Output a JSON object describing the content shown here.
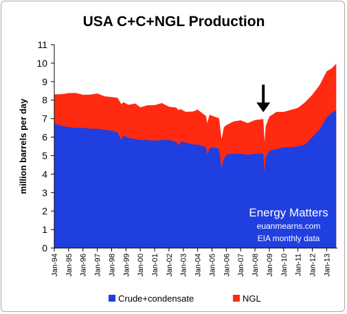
{
  "chart_data": {
    "type": "area",
    "title": "USA C+C+NGL Production",
    "ylabel": "million barrels per day",
    "ylim": [
      0,
      11
    ],
    "yticks": [
      0,
      1,
      2,
      3,
      4,
      5,
      6,
      7,
      8,
      9,
      10,
      11
    ],
    "xticks": [
      "Jan-94",
      "Jan-95",
      "Jan-96",
      "Jan-97",
      "Jan-98",
      "Jan-99",
      "Jan-00",
      "Jan-01",
      "Jan-02",
      "Jan-03",
      "Jan-04",
      "Jan-05",
      "Jan-06",
      "Jan-07",
      "Jan-08",
      "Jan-09",
      "Jan-10",
      "Jan-11",
      "Jan-12",
      "Jan-13"
    ],
    "stacked": true,
    "series": [
      {
        "name": "Crude+condensate",
        "color": "#1f3fe0",
        "points": [
          [
            "1994-01",
            6.75
          ],
          [
            "1994-07",
            6.6
          ],
          [
            "1995-01",
            6.55
          ],
          [
            "1995-07",
            6.5
          ],
          [
            "1996-01",
            6.5
          ],
          [
            "1996-07",
            6.45
          ],
          [
            "1997-01",
            6.45
          ],
          [
            "1997-07",
            6.4
          ],
          [
            "1998-01",
            6.35
          ],
          [
            "1998-06",
            6.25
          ],
          [
            "1998-09",
            5.85
          ],
          [
            "1998-11",
            6.1
          ],
          [
            "1999-03",
            5.95
          ],
          [
            "1999-09",
            5.9
          ],
          [
            "2000-01",
            5.85
          ],
          [
            "2000-07",
            5.85
          ],
          [
            "2001-01",
            5.8
          ],
          [
            "2001-07",
            5.85
          ],
          [
            "2002-01",
            5.85
          ],
          [
            "2002-07",
            5.75
          ],
          [
            "2002-09",
            5.55
          ],
          [
            "2002-11",
            5.75
          ],
          [
            "2003-03",
            5.7
          ],
          [
            "2003-09",
            5.6
          ],
          [
            "2004-01",
            5.6
          ],
          [
            "2004-08",
            5.45
          ],
          [
            "2004-09",
            5.05
          ],
          [
            "2004-11",
            5.4
          ],
          [
            "2005-03",
            5.45
          ],
          [
            "2005-07",
            5.35
          ],
          [
            "2005-09",
            4.3
          ],
          [
            "2005-11",
            4.85
          ],
          [
            "2006-01",
            5.05
          ],
          [
            "2006-07",
            5.1
          ],
          [
            "2007-01",
            5.1
          ],
          [
            "2007-07",
            5.05
          ],
          [
            "2008-01",
            5.1
          ],
          [
            "2008-08",
            5.1
          ],
          [
            "2008-09",
            4.05
          ],
          [
            "2008-10",
            4.9
          ],
          [
            "2009-01",
            5.25
          ],
          [
            "2009-07",
            5.35
          ],
          [
            "2010-01",
            5.45
          ],
          [
            "2010-07",
            5.45
          ],
          [
            "2011-01",
            5.5
          ],
          [
            "2011-07",
            5.6
          ],
          [
            "2012-01",
            6.0
          ],
          [
            "2012-07",
            6.4
          ],
          [
            "2013-01",
            7.05
          ],
          [
            "2013-05",
            7.3
          ],
          [
            "2013-09",
            7.45
          ]
        ]
      },
      {
        "name": "NGL",
        "color": "#ff2a10",
        "points": [
          [
            "1994-01",
            1.65
          ],
          [
            "1994-07",
            1.75
          ],
          [
            "1995-01",
            1.8
          ],
          [
            "1995-07",
            1.8
          ],
          [
            "1996-01",
            1.85
          ],
          [
            "1996-07",
            1.85
          ],
          [
            "1997-01",
            1.85
          ],
          [
            "1997-07",
            1.9
          ],
          [
            "1998-01",
            1.85
          ],
          [
            "1998-06",
            1.85
          ],
          [
            "1998-09",
            1.85
          ],
          [
            "1998-11",
            1.85
          ],
          [
            "1999-03",
            1.8
          ],
          [
            "1999-09",
            1.85
          ],
          [
            "2000-01",
            1.85
          ],
          [
            "2000-07",
            1.9
          ],
          [
            "2001-01",
            1.9
          ],
          [
            "2001-07",
            1.9
          ],
          [
            "2002-01",
            1.85
          ],
          [
            "2002-07",
            1.85
          ],
          [
            "2002-09",
            1.85
          ],
          [
            "2002-11",
            1.85
          ],
          [
            "2003-03",
            1.7
          ],
          [
            "2003-09",
            1.75
          ],
          [
            "2004-01",
            1.8
          ],
          [
            "2004-08",
            1.75
          ],
          [
            "2004-09",
            1.7
          ],
          [
            "2004-11",
            1.75
          ],
          [
            "2005-03",
            1.75
          ],
          [
            "2005-07",
            1.7
          ],
          [
            "2005-09",
            1.55
          ],
          [
            "2005-11",
            1.6
          ],
          [
            "2006-01",
            1.65
          ],
          [
            "2006-07",
            1.75
          ],
          [
            "2007-01",
            1.75
          ],
          [
            "2007-07",
            1.8
          ],
          [
            "2008-01",
            1.85
          ],
          [
            "2008-08",
            1.85
          ],
          [
            "2008-09",
            1.6
          ],
          [
            "2008-10",
            1.75
          ],
          [
            "2009-01",
            1.85
          ],
          [
            "2009-07",
            1.95
          ],
          [
            "2010-01",
            2.0
          ],
          [
            "2010-07",
            2.05
          ],
          [
            "2011-01",
            2.05
          ],
          [
            "2011-07",
            2.2
          ],
          [
            "2012-01",
            2.35
          ],
          [
            "2012-07",
            2.4
          ],
          [
            "2013-01",
            2.45
          ],
          [
            "2013-05",
            2.5
          ],
          [
            "2013-09",
            2.55
          ]
        ]
      }
    ],
    "annotations": [
      {
        "type": "arrow",
        "color": "#000000",
        "date": "2008-08",
        "points_to_value": 7.35
      }
    ],
    "legend": {
      "position": "bottom"
    },
    "grid": false
  },
  "annotation_text": {
    "line1": "Energy Matters",
    "line2": "euanmearns.com",
    "line3": "EIA monthly data"
  }
}
